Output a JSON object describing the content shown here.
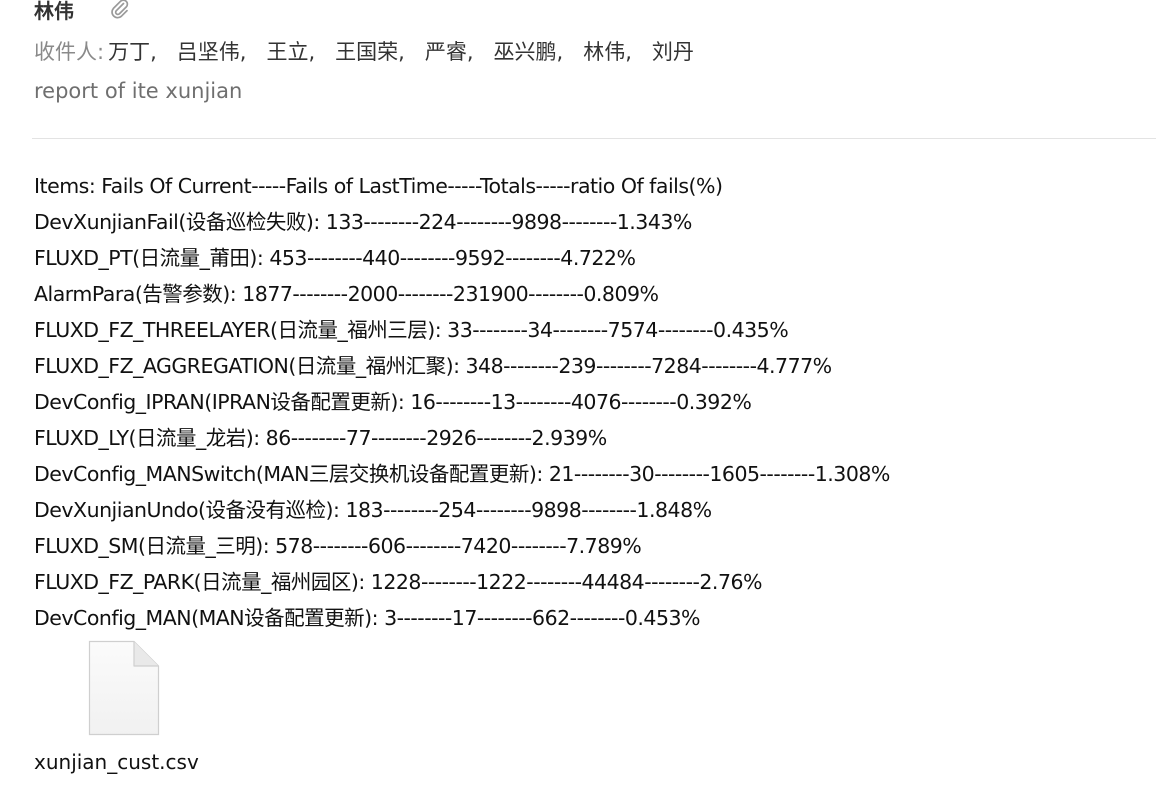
{
  "email": {
    "sender": "林伟",
    "recipients_label": "收件人:",
    "recipients": [
      "万丁,",
      "吕坚伟,",
      "王立,",
      "王国荣,",
      "严睿,",
      "巫兴鹏,",
      "林伟,",
      "刘丹"
    ],
    "subject": "report of ite xunjian"
  },
  "body": {
    "lines": [
      "Items:    Fails Of Current-----Fails of LastTime-----Totals-----ratio Of fails(%)",
      "DevXunjianFail(设备巡检失败): 133--------224--------9898--------1.343%",
      "FLUXD_PT(日流量_莆田): 453--------440--------9592--------4.722%",
      "AlarmPara(告警参数): 1877--------2000--------231900--------0.809%",
      "FLUXD_FZ_THREELAYER(日流量_福州三层): 33--------34--------7574--------0.435%",
      "FLUXD_FZ_AGGREGATION(日流量_福州汇聚): 348--------239--------7284--------4.777%",
      "DevConfig_IPRAN(IPRAN设备配置更新): 16--------13--------4076--------0.392%",
      "FLUXD_LY(日流量_龙岩): 86--------77--------2926--------2.939%",
      "DevConfig_MANSwitch(MAN三层交换机设备配置更新): 21--------30--------1605--------1.308%",
      "DevXunjianUndo(设备没有巡检): 183--------254--------9898--------1.848%",
      "FLUXD_SM(日流量_三明): 578--------606--------7420--------7.789%",
      "FLUXD_FZ_PARK(日流量_福州园区): 1228--------1222--------44484--------2.76%",
      "DevConfig_MAN(MAN设备配置更新): 3--------17--------662--------0.453%"
    ]
  },
  "attachment": {
    "file_name": "xunjian_cust.csv",
    "icon": "file-icon"
  },
  "icons": {
    "attachment_indicator": "paperclip-icon"
  },
  "colors": {
    "label_gray": "#8a8a8a",
    "subject_gray": "#6f6f6f",
    "text": "#111111"
  }
}
